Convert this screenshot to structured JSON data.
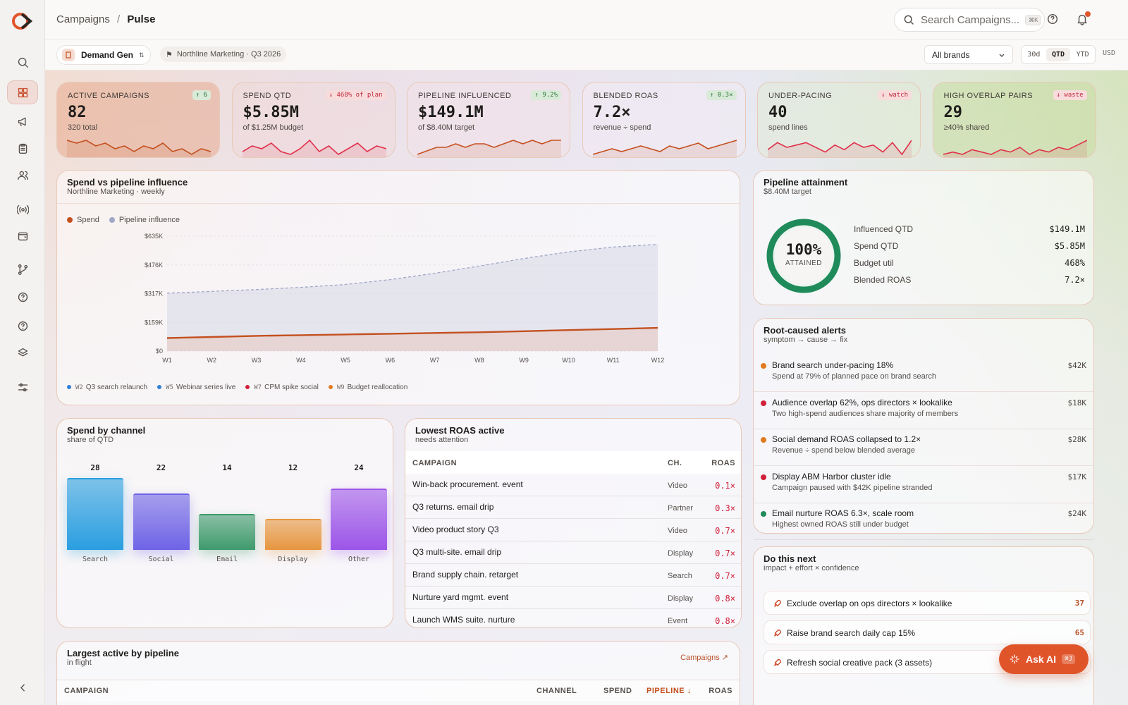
{
  "breadcrumb": {
    "parent": "Campaigns",
    "separator": "/",
    "current": "Pulse"
  },
  "search": {
    "placeholder": "Search Campaigns...",
    "shortcut": "⌘K"
  },
  "workspace": {
    "name": "Demand Gen",
    "tag": "Northline Marketing · Q3 2026"
  },
  "filters": {
    "brand": "All brands",
    "ranges": [
      "30d",
      "QTD",
      "YTD"
    ],
    "selected_range": "QTD",
    "currency": "USD"
  },
  "colors": {
    "accent": "#e0542a",
    "spend": "#c4501f",
    "pipeline": "#9fa7c6",
    "good": "#1f8a5a",
    "bad": "#d0203a",
    "warn": "#e07a20"
  },
  "sidebar": {
    "items": [
      "search-icon",
      "dashboard-icon",
      "megaphone-icon",
      "clipboard-icon",
      "users-icon",
      "broadcast-icon",
      "wallet-icon",
      "branch-icon",
      "help-icon",
      "help-circle-icon",
      "layers-icon",
      "sliders-icon"
    ],
    "active": "dashboard-icon",
    "collapse": "chevron-left-icon"
  },
  "kpis": [
    {
      "label": "ACTIVE CAMPAIGNS",
      "value": "82",
      "sub": "320 total",
      "delta": "↑ 6",
      "dir": "up",
      "spark": [
        8,
        7,
        8,
        6,
        7,
        5,
        6,
        4,
        6,
        5,
        7,
        4,
        5,
        3,
        5,
        4
      ]
    },
    {
      "label": "SPEND QTD",
      "value": "$5.85M",
      "sub": "of $1.25M budget",
      "delta": "↓ 468% of plan",
      "dir": "down",
      "spark": [
        4,
        6,
        5,
        7,
        4,
        3,
        5,
        8,
        4,
        6,
        3,
        5,
        7,
        4,
        6,
        5
      ]
    },
    {
      "label": "PIPELINE INFLUENCED",
      "value": "$149.1M",
      "sub": "of $8.40M target",
      "delta": "↑ 9.2%",
      "dir": "up",
      "spark": [
        3,
        4,
        5,
        5,
        6,
        5,
        6,
        6,
        5,
        6,
        7,
        6,
        7,
        6,
        7,
        7
      ]
    },
    {
      "label": "BLENDED ROAS",
      "value": "7.2×",
      "sub": "revenue ÷ spend",
      "delta": "↑ 0.3×",
      "dir": "up",
      "spark": [
        3,
        4,
        5,
        4,
        5,
        6,
        5,
        4,
        6,
        5,
        6,
        7,
        5,
        6,
        7,
        8
      ]
    },
    {
      "label": "UNDER-PACING",
      "value": "40",
      "sub": "spend lines",
      "delta": "↓ watch",
      "dir": "down",
      "spark": [
        5,
        8,
        6,
        7,
        8,
        6,
        4,
        7,
        5,
        8,
        6,
        7,
        4,
        8,
        3,
        9
      ]
    },
    {
      "label": "HIGH OVERLAP PAIRS",
      "value": "29",
      "sub": "≥40% shared",
      "delta": "↓ waste",
      "dir": "down",
      "spark": [
        4,
        5,
        4,
        6,
        5,
        4,
        6,
        5,
        7,
        4,
        6,
        5,
        7,
        6,
        8,
        10
      ]
    }
  ],
  "spend_chart": {
    "title": "Spend vs pipeline influence",
    "subtitle": "Northline Marketing · weekly",
    "legend": [
      "Spend",
      "Pipeline influence"
    ],
    "annotations": [
      {
        "week": "W2",
        "text": "Q3 search relaunch",
        "color": "#2f7fd6"
      },
      {
        "week": "W5",
        "text": "Webinar series live",
        "color": "#2f7fd6"
      },
      {
        "week": "W7",
        "text": "CPM spike social",
        "color": "#d0203a"
      },
      {
        "week": "W9",
        "text": "Budget reallocation",
        "color": "#e07a20"
      }
    ]
  },
  "chart_data": [
    {
      "type": "area",
      "title": "Spend vs pipeline influence",
      "x": [
        "W1",
        "W2",
        "W3",
        "W4",
        "W5",
        "W6",
        "W7",
        "W8",
        "W9",
        "W10",
        "W11",
        "W12"
      ],
      "yticks": [
        "$0",
        "$159K",
        "$317K",
        "$476K",
        "$635K"
      ],
      "ylim": [
        0,
        635
      ],
      "series": [
        {
          "name": "Spend",
          "values": [
            72,
            78,
            84,
            88,
            92,
            96,
            100,
            104,
            110,
            116,
            122,
            128
          ]
        },
        {
          "name": "Pipeline influence",
          "values": [
            320,
            330,
            340,
            352,
            368,
            395,
            430,
            470,
            512,
            548,
            575,
            590
          ]
        }
      ],
      "grid": true,
      "legend_position": "top-left"
    },
    {
      "type": "bar",
      "title": "Spend by channel",
      "categories": [
        "Search",
        "Social",
        "Email",
        "Display",
        "Other"
      ],
      "values": [
        28,
        22,
        14,
        12,
        24
      ],
      "colors": [
        "#2a9ee0",
        "#6e63e6",
        "#3e9a6c",
        "#e6963f",
        "#9c55e8"
      ]
    }
  ],
  "attainment": {
    "title": "Pipeline attainment",
    "subtitle": "$8.40M target",
    "percent": "100%",
    "percent_value": 100,
    "caption": "ATTAINED",
    "rows": [
      {
        "label": "Influenced QTD",
        "value": "$149.1M"
      },
      {
        "label": "Spend QTD",
        "value": "$5.85M"
      },
      {
        "label": "Budget util",
        "value": "468%"
      },
      {
        "label": "Blended ROAS",
        "value": "7.2×"
      }
    ]
  },
  "alerts": {
    "title": "Root-caused alerts",
    "subtitle": "symptom → cause → fix",
    "items": [
      {
        "title": "Brand search under-pacing 18%",
        "sub": "Spend at 79% of planned pace on brand search",
        "amount": "$42K",
        "color": "#e07a20"
      },
      {
        "title": "Audience overlap 62%, ops directors × lookalike",
        "sub": "Two high-spend audiences share majority of members",
        "amount": "$18K",
        "color": "#d0203a"
      },
      {
        "title": "Social demand ROAS collapsed to 1.2×",
        "sub": "Revenue ÷ spend below blended average",
        "amount": "$28K",
        "color": "#e07a20"
      },
      {
        "title": "Display ABM Harbor cluster idle",
        "sub": "Campaign paused with $42K pipeline stranded",
        "amount": "$17K",
        "color": "#d0203a"
      },
      {
        "title": "Email nurture ROAS 6.3×, scale room",
        "sub": "Highest owned ROAS still under budget",
        "amount": "$24K",
        "color": "#1f8a5a"
      }
    ]
  },
  "channel": {
    "title": "Spend by channel",
    "subtitle": "share of QTD"
  },
  "lowest": {
    "title": "Lowest ROAS active",
    "subtitle": "needs attention",
    "headers": [
      "CAMPAIGN",
      "CH.",
      "ROAS"
    ],
    "rows": [
      {
        "campaign": "Win-back procurement. event",
        "channel": "Video",
        "roas": "0.1×"
      },
      {
        "campaign": "Q3 returns. email drip",
        "channel": "Partner",
        "roas": "0.3×"
      },
      {
        "campaign": "Video product story Q3",
        "channel": "Video",
        "roas": "0.7×"
      },
      {
        "campaign": "Q3 multi-site. email drip",
        "channel": "Display",
        "roas": "0.7×"
      },
      {
        "campaign": "Brand supply chain. retarget",
        "channel": "Search",
        "roas": "0.7×"
      },
      {
        "campaign": "Nurture yard mgmt. event",
        "channel": "Display",
        "roas": "0.8×"
      },
      {
        "campaign": "Launch WMS suite. nurture",
        "channel": "Event",
        "roas": "0.8×"
      }
    ]
  },
  "next": {
    "title": "Do this next",
    "subtitle": "impact + effort × confidence",
    "items": [
      {
        "text": "Exclude overlap on ops directors × lookalike",
        "score": "37"
      },
      {
        "text": "Raise brand search daily cap 15%",
        "score": "65"
      },
      {
        "text": "Refresh social creative pack (3 assets)",
        "score": ""
      }
    ]
  },
  "largest": {
    "title": "Largest active by pipeline",
    "subtitle": "in flight",
    "link": "Campaigns ↗",
    "headers": [
      "CAMPAIGN",
      "CHANNEL",
      "SPEND",
      "PIPELINE ↓",
      "ROAS"
    ]
  },
  "ask_ai": {
    "label": "Ask AI",
    "shortcut": "⌘J"
  }
}
